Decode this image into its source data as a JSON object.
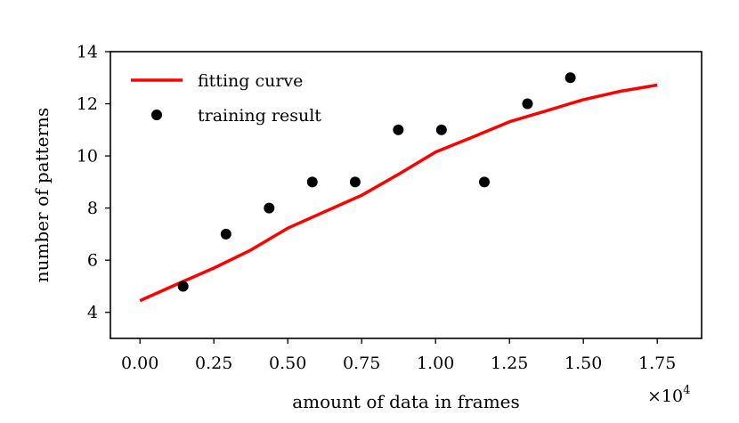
{
  "chart_data": {
    "type": "scatter",
    "title": "",
    "xlabel": "amount of data in frames",
    "ylabel": "number of patterns",
    "x_scale_label": "×10",
    "x_scale_exponent": "4",
    "xlim": [
      -0.1,
      1.9
    ],
    "ylim": [
      3,
      14
    ],
    "xticks": [
      0.0,
      0.25,
      0.5,
      0.75,
      1.0,
      1.25,
      1.5,
      1.75
    ],
    "xtick_labels": [
      "0.00",
      "0.25",
      "0.50",
      "0.75",
      "1.00",
      "1.25",
      "1.50",
      "1.75"
    ],
    "yticks": [
      4,
      6,
      8,
      10,
      12,
      14
    ],
    "ytick_labels": [
      "4",
      "6",
      "8",
      "10",
      "12",
      "14"
    ],
    "legend_position": "top-left",
    "series": [
      {
        "name": "fitting curve",
        "kind": "line",
        "color": "#ff0000",
        "x": [
          0.0,
          0.125,
          0.25,
          0.375,
          0.5,
          0.625,
          0.75,
          0.875,
          1.0,
          1.125,
          1.25,
          1.375,
          1.5,
          1.625,
          1.75
        ],
        "y": [
          4.45,
          5.08,
          5.7,
          6.39,
          7.23,
          7.86,
          8.49,
          9.3,
          10.15,
          10.72,
          11.31,
          11.73,
          12.16,
          12.48,
          12.72
        ]
      },
      {
        "name": "training result",
        "kind": "scatter",
        "color": "#000000",
        "x": [
          0.146,
          0.291,
          0.437,
          0.583,
          0.728,
          0.874,
          1.02,
          1.165,
          1.311,
          1.456
        ],
        "y": [
          5,
          7,
          8,
          9,
          9,
          11,
          11,
          9,
          12,
          13
        ]
      }
    ]
  }
}
